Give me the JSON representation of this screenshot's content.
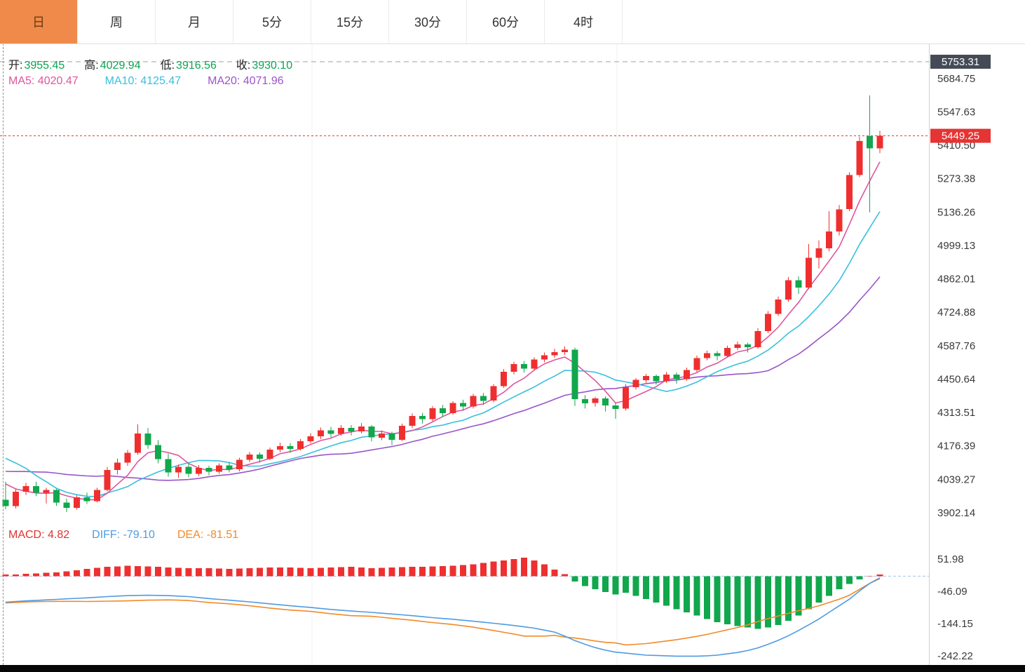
{
  "tabs": {
    "items": [
      {
        "label": "日",
        "active": true
      },
      {
        "label": "周",
        "active": false
      },
      {
        "label": "月",
        "active": false
      },
      {
        "label": "5分",
        "active": false
      },
      {
        "label": "15分",
        "active": false
      },
      {
        "label": "30分",
        "active": false
      },
      {
        "label": "60分",
        "active": false
      },
      {
        "label": "4时",
        "active": false
      }
    ]
  },
  "legend": {
    "o_label": "开:",
    "o": "3955.45",
    "h_label": "高:",
    "h": "4029.94",
    "l_label": "低:",
    "l": "3916.56",
    "c_label": "收:",
    "c": "3930.10",
    "ma5": "MA5: 4020.47",
    "ma10": "MA10: 4125.47",
    "ma20": "MA20: 4071.96"
  },
  "macd_legend": {
    "macd": "MACD: 4.82",
    "diff": "DIFF: -79.10",
    "dea": "DEA: -81.51"
  },
  "axis": {
    "price_high_badge": "5753.31",
    "price_badge": "5449.25",
    "price_ticks": [
      "5684.75",
      "5547.63",
      "5410.50",
      "5273.38",
      "5136.26",
      "4999.13",
      "4862.01",
      "4724.88",
      "4587.76",
      "4450.64",
      "4313.51",
      "4176.39",
      "4039.27",
      "3902.14"
    ],
    "macd_ticks": [
      "51.98",
      "-46.09",
      "-144.15",
      "-242.22"
    ]
  },
  "colors": {
    "up": "#ef2f2f",
    "down": "#11a74c",
    "ma5": "#e0569d",
    "ma10": "#38bfdf",
    "ma20": "#9a55c9",
    "diff": "#4f9be0",
    "dea": "#f28a2a",
    "price_line": "#e53434",
    "badge_dark": "#454b56",
    "axis_text": "#3a3a3a",
    "green_text": "#0ba553",
    "red_text": "#e03232",
    "tab_active": "#f08a4a",
    "zero_line": "#9fc6e8"
  },
  "chart_data": {
    "type": "candlestick",
    "timeframe": "日",
    "legend_position": "top-left",
    "grid": "minimal-vertical",
    "price_axis": {
      "max": 5753.31,
      "min": 3902.14
    },
    "macd_axis": {
      "max": 51.98,
      "min": -242.22
    },
    "last_price": 5449.25,
    "high_marker": 5753.31,
    "ma_periods": [
      5,
      10,
      20
    ],
    "ma_seed": [
      4000,
      4000,
      4010,
      4020,
      4015,
      4025,
      4030,
      4020,
      4015,
      4025,
      4024.5,
      4180,
      4230,
      4280,
      4250,
      4212.35,
      4090,
      4060,
      4020,
      4002.25
    ],
    "candles": [
      [
        3955.45,
        4029.94,
        3916.56,
        3930.1
      ],
      [
        3930,
        4000,
        3920,
        3988
      ],
      [
        3988,
        4025,
        3975,
        4012
      ],
      [
        4012,
        4030,
        3970,
        3984
      ],
      [
        3984,
        4005,
        3940,
        3996
      ],
      [
        3996,
        4000,
        3930,
        3944
      ],
      [
        3944,
        3960,
        3905,
        3922
      ],
      [
        3922,
        3975,
        3915,
        3966
      ],
      [
        3966,
        3985,
        3938,
        3950
      ],
      [
        3950,
        4005,
        3945,
        3996
      ],
      [
        3996,
        4090,
        3990,
        4078
      ],
      [
        4078,
        4125,
        4060,
        4108
      ],
      [
        4108,
        4160,
        4095,
        4148
      ],
      [
        4148,
        4265,
        4140,
        4228
      ],
      [
        4228,
        4250,
        4165,
        4180
      ],
      [
        4180,
        4200,
        4105,
        4122
      ],
      [
        4122,
        4145,
        4050,
        4068
      ],
      [
        4068,
        4100,
        4045,
        4090
      ],
      [
        4090,
        4105,
        4048,
        4062
      ],
      [
        4062,
        4098,
        4052,
        4086
      ],
      [
        4086,
        4096,
        4056,
        4070
      ],
      [
        4070,
        4105,
        4062,
        4096
      ],
      [
        4096,
        4110,
        4068,
        4080
      ],
      [
        4080,
        4128,
        4072,
        4120
      ],
      [
        4120,
        4152,
        4110,
        4141
      ],
      [
        4141,
        4150,
        4108,
        4124
      ],
      [
        4124,
        4170,
        4118,
        4161
      ],
      [
        4161,
        4190,
        4150,
        4176
      ],
      [
        4176,
        4188,
        4148,
        4164
      ],
      [
        4164,
        4205,
        4158,
        4196
      ],
      [
        4196,
        4228,
        4188,
        4216
      ],
      [
        4216,
        4252,
        4205,
        4241
      ],
      [
        4241,
        4255,
        4212,
        4226
      ],
      [
        4226,
        4262,
        4218,
        4251
      ],
      [
        4251,
        4262,
        4220,
        4236
      ],
      [
        4236,
        4270,
        4228,
        4256
      ],
      [
        4256,
        4262,
        4195,
        4211
      ],
      [
        4211,
        4240,
        4200,
        4227
      ],
      [
        4227,
        4235,
        4180,
        4201
      ],
      [
        4201,
        4268,
        4196,
        4259
      ],
      [
        4259,
        4310,
        4250,
        4299
      ],
      [
        4299,
        4312,
        4268,
        4286
      ],
      [
        4286,
        4340,
        4278,
        4331
      ],
      [
        4331,
        4345,
        4295,
        4311
      ],
      [
        4311,
        4360,
        4305,
        4352
      ],
      [
        4352,
        4366,
        4322,
        4338
      ],
      [
        4338,
        4390,
        4330,
        4381
      ],
      [
        4381,
        4394,
        4345,
        4362
      ],
      [
        4362,
        4430,
        4356,
        4422
      ],
      [
        4422,
        4492,
        4415,
        4481
      ],
      [
        4481,
        4522,
        4470,
        4512
      ],
      [
        4512,
        4525,
        4478,
        4494
      ],
      [
        4494,
        4540,
        4486,
        4531
      ],
      [
        4531,
        4560,
        4520,
        4548
      ],
      [
        4548,
        4575,
        4538,
        4562
      ],
      [
        4562,
        4585,
        4550,
        4571
      ],
      [
        4571,
        4580,
        4340,
        4368
      ],
      [
        4368,
        4385,
        4330,
        4352
      ],
      [
        4352,
        4378,
        4338,
        4371
      ],
      [
        4371,
        4380,
        4318,
        4343
      ],
      [
        4343,
        4355,
        4288,
        4329
      ],
      [
        4329,
        4430,
        4322,
        4418
      ],
      [
        4418,
        4455,
        4408,
        4447
      ],
      [
        4447,
        4472,
        4435,
        4463
      ],
      [
        4463,
        4470,
        4428,
        4442
      ],
      [
        4442,
        4480,
        4435,
        4469
      ],
      [
        4469,
        4478,
        4432,
        4451
      ],
      [
        4451,
        4498,
        4444,
        4488
      ],
      [
        4488,
        4548,
        4480,
        4537
      ],
      [
        4537,
        4568,
        4528,
        4557
      ],
      [
        4557,
        4566,
        4528,
        4546
      ],
      [
        4546,
        4588,
        4540,
        4578
      ],
      [
        4578,
        4605,
        4570,
        4593
      ],
      [
        4593,
        4600,
        4560,
        4582
      ],
      [
        4582,
        4660,
        4575,
        4648
      ],
      [
        4648,
        4730,
        4640,
        4718
      ],
      [
        4718,
        4790,
        4710,
        4777
      ],
      [
        4777,
        4870,
        4768,
        4857
      ],
      [
        4857,
        4872,
        4800,
        4826
      ],
      [
        4826,
        5005,
        4820,
        4948
      ],
      [
        4948,
        5020,
        4905,
        4988
      ],
      [
        4988,
        5140,
        4975,
        5057
      ],
      [
        5057,
        5165,
        5040,
        5148
      ],
      [
        5148,
        5300,
        5140,
        5288
      ],
      [
        5288,
        5445,
        5280,
        5428
      ],
      [
        5448,
        5615,
        5135,
        5398
      ],
      [
        5398,
        5470,
        5378,
        5449.25
      ]
    ],
    "macd": {
      "hist": [
        4.82,
        5.5,
        7,
        8,
        10,
        12,
        15,
        18,
        22,
        25,
        28,
        30,
        32,
        31,
        30,
        28,
        26,
        25,
        24,
        24,
        24,
        23,
        22,
        23,
        24,
        25,
        26,
        26,
        26,
        25,
        24,
        25,
        26,
        27,
        28,
        26,
        24,
        25,
        26,
        27,
        28,
        29,
        30,
        31,
        32,
        34,
        36,
        40,
        44,
        48,
        52,
        56,
        48,
        36,
        20,
        6,
        -16,
        -30,
        -40,
        -48,
        -56,
        -50,
        -60,
        -70,
        -80,
        -90,
        -100,
        -110,
        -120,
        -130,
        -140,
        -146,
        -152,
        -156,
        -160,
        -156,
        -148,
        -136,
        -120,
        -100,
        -80,
        -60,
        -40,
        -24,
        -10,
        0,
        4.82
      ],
      "diff": [
        -79.1,
        -77,
        -75,
        -73.5,
        -72,
        -70.5,
        -69,
        -67.5,
        -66,
        -64,
        -62,
        -60.5,
        -59,
        -58.5,
        -58,
        -58.5,
        -59,
        -60.5,
        -62,
        -65,
        -68,
        -70.5,
        -73,
        -75.5,
        -78,
        -81,
        -84,
        -87,
        -90,
        -92.5,
        -95,
        -98,
        -101,
        -103.5,
        -106,
        -108,
        -110,
        -112.5,
        -115,
        -117.5,
        -120,
        -123,
        -126,
        -128.5,
        -131,
        -134,
        -137,
        -140,
        -143,
        -146.5,
        -150,
        -154,
        -158,
        -164,
        -170,
        -182,
        -196,
        -207,
        -217,
        -225,
        -231,
        -234,
        -237,
        -240,
        -241,
        -242,
        -243,
        -243,
        -243,
        -242,
        -240,
        -236,
        -232,
        -226,
        -218,
        -207,
        -195,
        -181,
        -165,
        -148,
        -130,
        -110,
        -90,
        -70,
        -45,
        -22,
        -5
      ],
      "dea": [
        -81.51,
        -79.75,
        -78.5,
        -77.5,
        -77,
        -76.5,
        -76.5,
        -76.5,
        -77,
        -76.5,
        -76,
        -75.5,
        -75,
        -74,
        -73,
        -72.5,
        -72,
        -73,
        -74,
        -77,
        -80,
        -82,
        -84,
        -87,
        -90,
        -93.5,
        -97,
        -100,
        -103,
        -105,
        -107,
        -110.5,
        -114,
        -117,
        -120,
        -121,
        -122,
        -125,
        -128,
        -131,
        -134,
        -137.5,
        -141,
        -144,
        -147,
        -151,
        -155,
        -160,
        -165,
        -170.5,
        -176,
        -182,
        -182,
        -182,
        -180,
        -185,
        -188,
        -192,
        -197,
        -201,
        -203,
        -209,
        -207,
        -205,
        -201,
        -197,
        -193,
        -188,
        -183,
        -177,
        -170,
        -163,
        -156,
        -148,
        -138,
        -129,
        -121,
        -113,
        -105,
        -98,
        -90,
        -80,
        -70,
        -58,
        -40,
        -22,
        -7.41
      ]
    }
  }
}
